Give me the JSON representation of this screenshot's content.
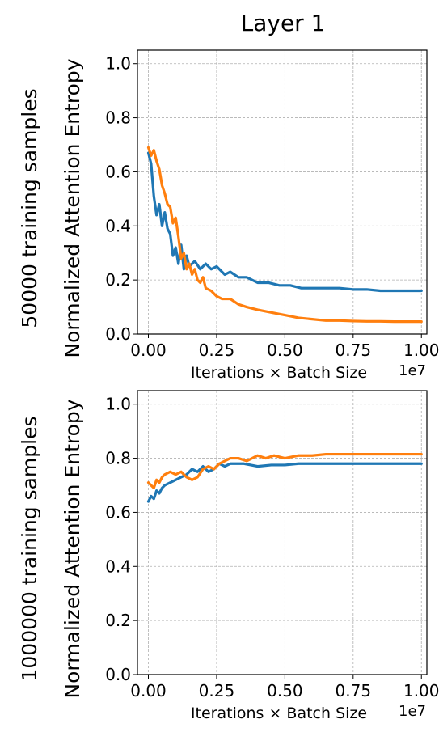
{
  "figure_title": "Layer 1",
  "colors": {
    "blue": "#1f77b4",
    "orange": "#ff7f0e"
  },
  "chart_data": [
    {
      "type": "line",
      "row_label": "50000 training samples",
      "xlabel": "Iterations × Batch Size",
      "ylabel": "Normalized Attention Entropy",
      "x_offset_label": "1e7",
      "xlim": [
        -0.04,
        1.02
      ],
      "ylim": [
        0.0,
        1.05
      ],
      "xticks": [
        0.0,
        0.25,
        0.5,
        0.75,
        1.0
      ],
      "xtick_labels": [
        "0.00",
        "0.25",
        "0.50",
        "0.75",
        "1.00"
      ],
      "yticks": [
        0.0,
        0.2,
        0.4,
        0.6,
        0.8,
        1.0
      ],
      "ytick_labels": [
        "0.0",
        "0.2",
        "0.4",
        "0.6",
        "0.8",
        "1.0"
      ],
      "grid": true,
      "series": [
        {
          "color": "#1f77b4",
          "x": [
            0.0,
            0.01,
            0.02,
            0.03,
            0.04,
            0.05,
            0.06,
            0.07,
            0.08,
            0.09,
            0.1,
            0.11,
            0.12,
            0.13,
            0.14,
            0.15,
            0.17,
            0.19,
            0.21,
            0.23,
            0.25,
            0.28,
            0.3,
            0.33,
            0.36,
            0.4,
            0.44,
            0.48,
            0.52,
            0.56,
            0.6,
            0.65,
            0.7,
            0.75,
            0.8,
            0.85,
            0.9,
            0.95,
            1.0
          ],
          "y": [
            0.67,
            0.63,
            0.51,
            0.44,
            0.48,
            0.4,
            0.45,
            0.39,
            0.37,
            0.29,
            0.32,
            0.26,
            0.33,
            0.24,
            0.29,
            0.25,
            0.27,
            0.24,
            0.26,
            0.24,
            0.25,
            0.22,
            0.23,
            0.21,
            0.21,
            0.19,
            0.19,
            0.18,
            0.18,
            0.17,
            0.17,
            0.17,
            0.17,
            0.165,
            0.165,
            0.16,
            0.16,
            0.16,
            0.16
          ]
        },
        {
          "color": "#ff7f0e",
          "x": [
            0.0,
            0.01,
            0.02,
            0.03,
            0.04,
            0.05,
            0.06,
            0.07,
            0.08,
            0.09,
            0.1,
            0.11,
            0.12,
            0.13,
            0.14,
            0.15,
            0.16,
            0.17,
            0.18,
            0.19,
            0.2,
            0.21,
            0.23,
            0.25,
            0.27,
            0.3,
            0.33,
            0.36,
            0.4,
            0.45,
            0.5,
            0.55,
            0.6,
            0.65,
            0.7,
            0.75,
            0.8,
            0.85,
            0.9,
            0.95,
            1.0
          ],
          "y": [
            0.69,
            0.66,
            0.68,
            0.64,
            0.61,
            0.55,
            0.52,
            0.48,
            0.47,
            0.41,
            0.43,
            0.36,
            0.28,
            0.3,
            0.24,
            0.26,
            0.22,
            0.24,
            0.2,
            0.19,
            0.21,
            0.17,
            0.16,
            0.14,
            0.13,
            0.13,
            0.11,
            0.1,
            0.09,
            0.08,
            0.07,
            0.06,
            0.055,
            0.05,
            0.05,
            0.048,
            0.047,
            0.047,
            0.046,
            0.046,
            0.046
          ]
        }
      ]
    },
    {
      "type": "line",
      "row_label": "1000000 training samples",
      "xlabel": "Iterations × Batch Size",
      "ylabel": "Normalized Attention Entropy",
      "x_offset_label": "1e7",
      "xlim": [
        -0.04,
        1.02
      ],
      "ylim": [
        0.0,
        1.05
      ],
      "xticks": [
        0.0,
        0.25,
        0.5,
        0.75,
        1.0
      ],
      "xtick_labels": [
        "0.00",
        "0.25",
        "0.50",
        "0.75",
        "1.00"
      ],
      "yticks": [
        0.0,
        0.2,
        0.4,
        0.6,
        0.8,
        1.0
      ],
      "ytick_labels": [
        "0.0",
        "0.2",
        "0.4",
        "0.6",
        "0.8",
        "1.0"
      ],
      "grid": true,
      "series": [
        {
          "color": "#1f77b4",
          "x": [
            0.0,
            0.01,
            0.02,
            0.03,
            0.04,
            0.05,
            0.06,
            0.08,
            0.1,
            0.12,
            0.14,
            0.16,
            0.18,
            0.2,
            0.22,
            0.24,
            0.26,
            0.28,
            0.3,
            0.35,
            0.4,
            0.45,
            0.5,
            0.55,
            0.6,
            0.65,
            0.7,
            0.75,
            0.8,
            0.85,
            0.9,
            0.95,
            1.0
          ],
          "y": [
            0.64,
            0.66,
            0.65,
            0.68,
            0.67,
            0.69,
            0.7,
            0.71,
            0.72,
            0.73,
            0.74,
            0.76,
            0.75,
            0.77,
            0.75,
            0.76,
            0.78,
            0.77,
            0.78,
            0.78,
            0.77,
            0.775,
            0.775,
            0.78,
            0.78,
            0.78,
            0.78,
            0.78,
            0.78,
            0.78,
            0.78,
            0.78,
            0.78
          ]
        },
        {
          "color": "#ff7f0e",
          "x": [
            0.0,
            0.01,
            0.02,
            0.03,
            0.04,
            0.05,
            0.06,
            0.08,
            0.1,
            0.12,
            0.14,
            0.16,
            0.18,
            0.2,
            0.22,
            0.24,
            0.26,
            0.28,
            0.3,
            0.33,
            0.36,
            0.4,
            0.43,
            0.46,
            0.5,
            0.55,
            0.6,
            0.65,
            0.7,
            0.75,
            0.8,
            0.85,
            0.9,
            0.95,
            1.0
          ],
          "y": [
            0.71,
            0.7,
            0.69,
            0.72,
            0.71,
            0.73,
            0.74,
            0.75,
            0.74,
            0.75,
            0.73,
            0.72,
            0.73,
            0.76,
            0.77,
            0.76,
            0.78,
            0.79,
            0.8,
            0.8,
            0.79,
            0.81,
            0.8,
            0.81,
            0.8,
            0.81,
            0.81,
            0.815,
            0.815,
            0.815,
            0.815,
            0.815,
            0.815,
            0.815,
            0.815
          ]
        }
      ]
    }
  ]
}
